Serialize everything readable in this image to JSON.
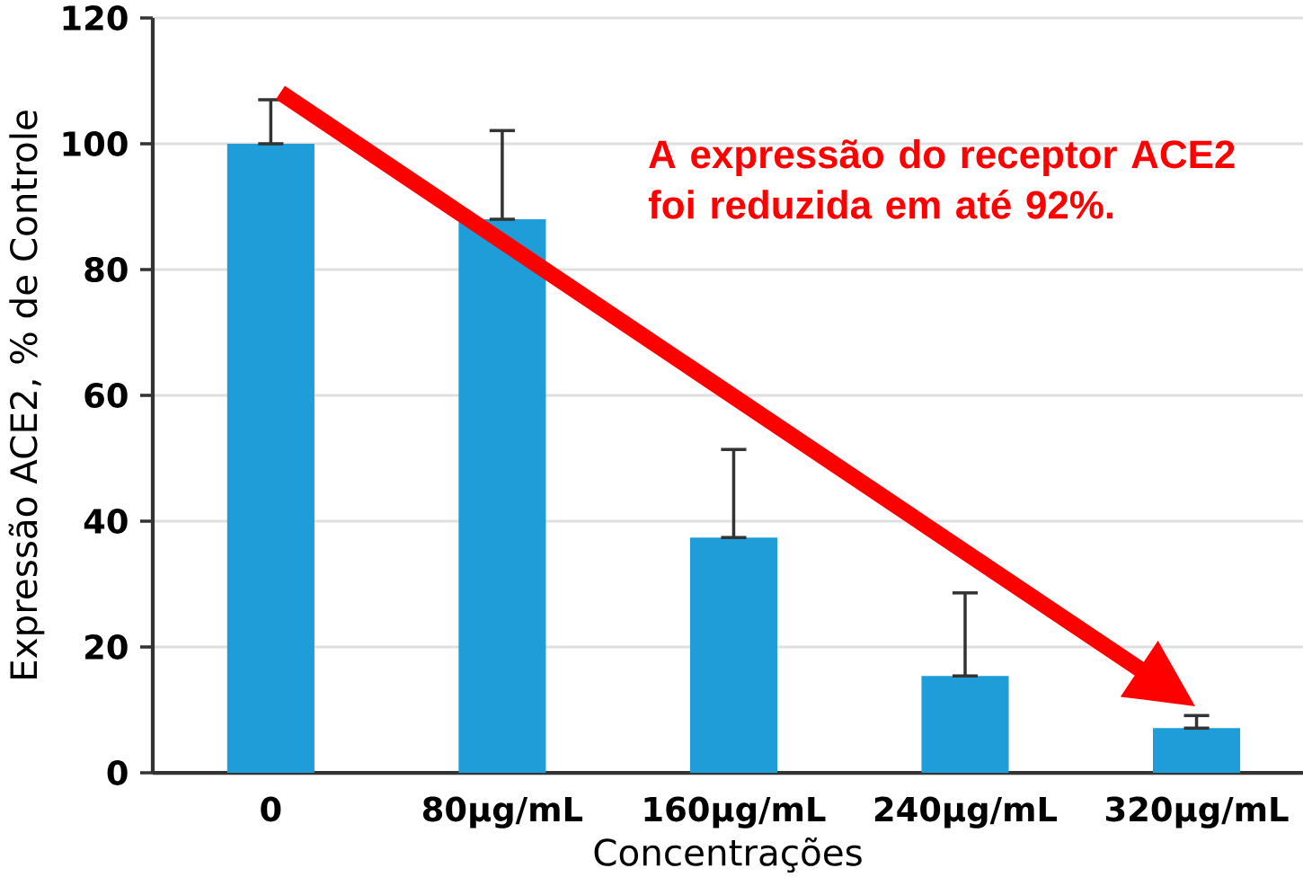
{
  "chart_data": {
    "type": "bar",
    "xlabel": "Concentrações",
    "ylabel": "Expressão ACE2, % de Controle",
    "categories": [
      "0",
      "80µg/mL",
      "160µg/mL",
      "240µg/mL",
      "320µg/mL"
    ],
    "values": [
      100,
      88,
      37.4,
      15.4,
      7.1
    ],
    "errors": [
      [
        100,
        107
      ],
      [
        88,
        102.1
      ],
      [
        37.4,
        51.4
      ],
      [
        15.4,
        28.6
      ],
      [
        7.1,
        9.1
      ]
    ],
    "color": "#1f9dd9",
    "ylim": [
      0,
      120
    ],
    "yticks": [
      0,
      20,
      40,
      60,
      80,
      100,
      120
    ],
    "grid": "y",
    "annotations": [
      "A expressão do receptor ACE2 foi reduzida em até 92%."
    ]
  }
}
